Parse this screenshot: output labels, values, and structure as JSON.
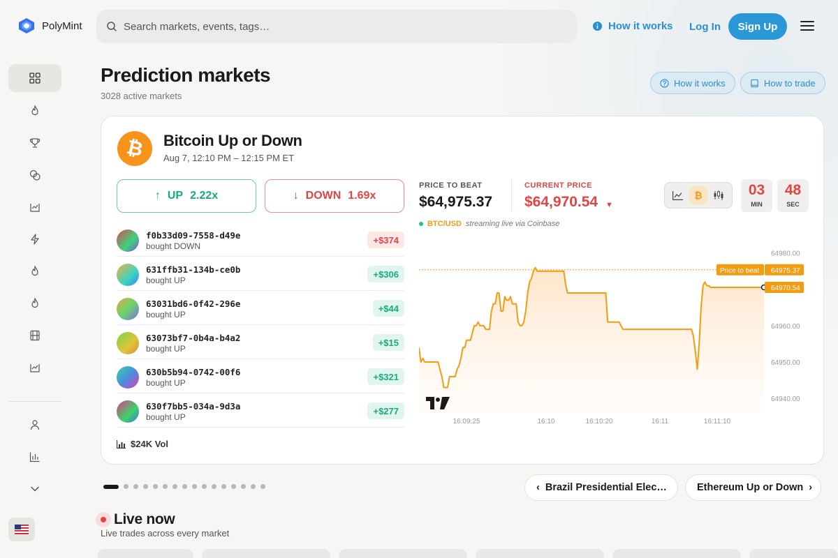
{
  "header": {
    "brand": "PolyMint",
    "search_placeholder": "Search markets, events, tags…",
    "how_it_works": "How it works",
    "login": "Log In",
    "signup": "Sign Up"
  },
  "page": {
    "title": "Prediction markets",
    "subtitle": "3028 active markets",
    "how_it_works": "How it works",
    "how_to_trade": "How to trade"
  },
  "market": {
    "title": "Bitcoin Up or Down",
    "date": "Aug 7, 12:10 PM – 12:15 PM ET",
    "up_label": "UP",
    "up_mult": "2.22x",
    "down_label": "DOWN",
    "down_mult": "1.69x",
    "price_to_beat_label": "PRICE TO BEAT",
    "price_to_beat": "$64,975.37",
    "current_price_label": "CURRENT PRICE",
    "current_price": "$64,970.54",
    "pair": "BTC/USD",
    "stream_note": "streaming live via Coinbase",
    "timer_min": "03",
    "timer_min_label": "MIN",
    "timer_sec": "48",
    "timer_sec_label": "SEC",
    "volume": "$24K Vol",
    "trades": [
      {
        "id": "f0b33d09-7558-d49e",
        "action": "bought DOWN",
        "amount": "+$374",
        "side": "neg"
      },
      {
        "id": "631ffb31-134b-ce0b",
        "action": "bought UP",
        "amount": "+$306",
        "side": "pos"
      },
      {
        "id": "63031bd6-0f42-296e",
        "action": "bought UP",
        "amount": "+$44",
        "side": "pos"
      },
      {
        "id": "63073bf7-0b4a-b4a2",
        "action": "bought UP",
        "amount": "+$15",
        "side": "pos"
      },
      {
        "id": "630b5b94-0742-00f6",
        "action": "bought UP",
        "amount": "+$321",
        "side": "pos"
      },
      {
        "id": "630f7bb5-034a-9d3a",
        "action": "bought UP",
        "amount": "+$277",
        "side": "pos"
      }
    ]
  },
  "chart_data": {
    "type": "line",
    "xlabel": "",
    "ylabel": "",
    "x_ticks": [
      "16:09:25",
      "16:10",
      "16:10:20",
      "16:11",
      "16:11:10"
    ],
    "y_ticks": [
      64980,
      64960,
      64950,
      64940
    ],
    "y_tick_labels": [
      "64980.00",
      "64960.00",
      "64950.00",
      "64940.00"
    ],
    "ylim": [
      64936,
      64983
    ],
    "price_to_beat_line": {
      "label": "Price to beat",
      "value": "64975.37",
      "y": 64975.37
    },
    "current_marker": {
      "value": "64970.54",
      "y": 64970.54
    },
    "color": "#f39c12",
    "series": [
      {
        "values": [
          64954,
          64950,
          64951,
          64950,
          64950,
          64950,
          64950,
          64950,
          64950,
          64950,
          64950,
          64948,
          64946,
          64943,
          64943,
          64943,
          64946,
          64946,
          64946,
          64946,
          64948,
          64949,
          64951,
          64954,
          64954,
          64956,
          64956,
          64956,
          64958,
          64960,
          64960,
          64961,
          64960,
          64960,
          64960,
          64959,
          64959,
          64959,
          64964,
          64966,
          64966,
          64969,
          64969,
          64964,
          64964,
          64968,
          64967,
          64967,
          64968,
          64966,
          64966,
          64966,
          64961,
          64960,
          64960,
          64961,
          64964,
          64969,
          64972,
          64973,
          64975,
          64976,
          64975,
          64975,
          64975,
          64975,
          64975,
          64975,
          64975,
          64975,
          64975,
          64975,
          64975,
          64975,
          64975,
          64975,
          64975,
          64971,
          64969,
          64969,
          64969,
          64969,
          64969,
          64969,
          64969,
          64969,
          64969,
          64969,
          64969,
          64969,
          64969,
          64969,
          64969,
          64969,
          64969,
          64969,
          64969,
          64969,
          64969,
          64961,
          64961,
          64961,
          64961,
          64961,
          64961,
          64961,
          64960,
          64959,
          64959,
          64959,
          64959,
          64959,
          64959,
          64959,
          64959,
          64959,
          64959,
          64959,
          64959,
          64959,
          64959,
          64959,
          64959,
          64959,
          64959,
          64959,
          64959,
          64959,
          64959,
          64959,
          64959,
          64959,
          64959,
          64959,
          64959,
          64959,
          64959,
          64959,
          64959,
          64959,
          64959,
          64959,
          64959,
          64959,
          64957,
          64953,
          64948,
          64955,
          64965,
          64971,
          64972,
          64971,
          64971,
          64970.54,
          64970.54,
          64970.54,
          64970.54,
          64970.54,
          64970.54,
          64970.54,
          64970.54,
          64970.54,
          64970.54,
          64970.54,
          64970.54,
          64970.54,
          64970.54,
          64970.54,
          64970.54,
          64970.54,
          64970.54,
          64970.54,
          64970.54,
          64970.54,
          64970.54,
          64970.54,
          64970.54,
          64970.54,
          64970.54,
          64970.54,
          64970.54,
          64970.54
        ]
      }
    ]
  },
  "pager": {
    "count": 16,
    "active": 0
  },
  "nav": {
    "prev": "Brazil Presidential Elec…",
    "next": "Ethereum Up or Down"
  },
  "live": {
    "title": "Live now",
    "subtitle": "Live trades across every market"
  },
  "colors": {
    "accent": "#2a98d6",
    "up": "#18a97e",
    "down": "#e04545",
    "btc": "#f7931a"
  }
}
